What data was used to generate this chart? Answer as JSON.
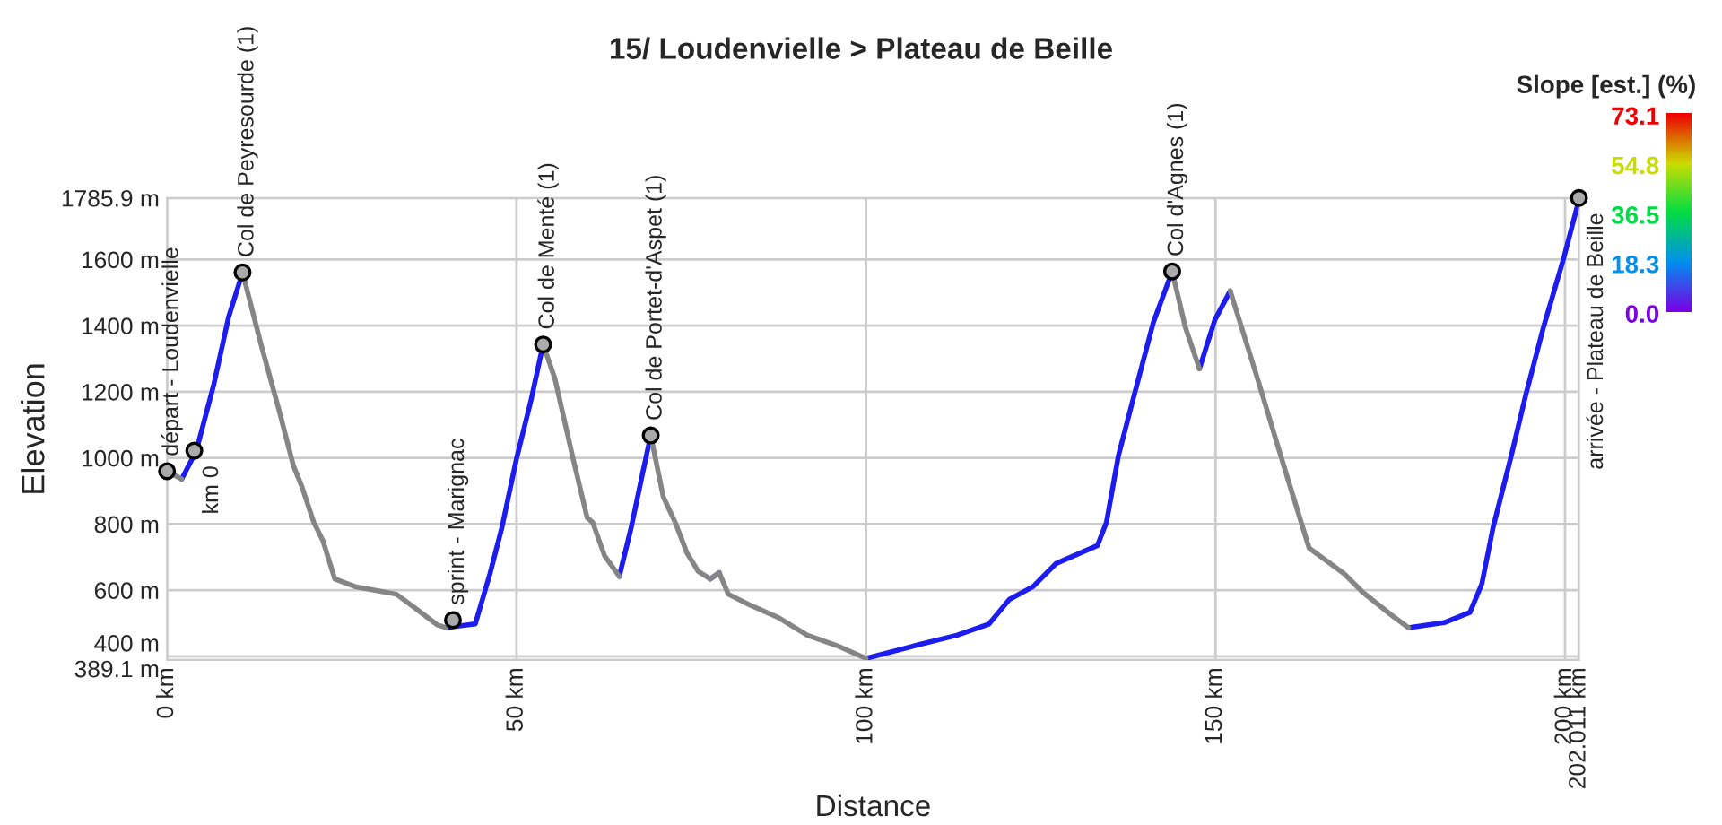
{
  "chart_data": {
    "type": "line",
    "title": "15/ Loudenvielle > Plateau de Beille",
    "xlabel": "Distance",
    "ylabel": "Elevation",
    "x": [
      0,
      2.1,
      4.2,
      6.7,
      8.8,
      10.8,
      13.4,
      16.0,
      18.1,
      19.3,
      21.0,
      22.3,
      24.0,
      26.9,
      30.3,
      32.8,
      35.3,
      38.7,
      39.9,
      44.1,
      46.2,
      47.9,
      50.0,
      52.1,
      53.8,
      55.5,
      58.0,
      60.1,
      60.9,
      62.6,
      64.7,
      66.4,
      68.1,
      69.2,
      71.0,
      72.7,
      74.4,
      76.0,
      77.7,
      79.0,
      80.3,
      83.2,
      87.4,
      91.6,
      95.8,
      100.0,
      107.1,
      113.0,
      117.6,
      120.5,
      123.9,
      127.2,
      133.1,
      134.4,
      136.1,
      138.2,
      141.1,
      143.8,
      145.7,
      147.7,
      149.9,
      152.1,
      155.8,
      160.0,
      163.4,
      168.4,
      171.0,
      175.1,
      177.6,
      182.7,
      186.4,
      188.1,
      189.7,
      192.3,
      194.4,
      196.9,
      199.8,
      202.0
    ],
    "series": [
      {
        "color": "#1c1cf0",
        "values": [
          null,
          936,
          1022,
          1223,
          1425,
          1561,
          null,
          null,
          null,
          null,
          null,
          null,
          null,
          null,
          null,
          null,
          null,
          null,
          487,
          498,
          650,
          789,
          998,
          1177,
          1343,
          null,
          null,
          null,
          null,
          null,
          642,
          789,
          960,
          1068,
          null,
          null,
          null,
          null,
          634,
          653,
          null,
          null,
          null,
          null,
          null,
          394,
          433,
          464,
          498,
          572,
          611,
          681,
          735,
          805,
          1006,
          1177,
          1409,
          1564,
          null,
          1270,
          1417,
          1505,
          null,
          null,
          null,
          null,
          null,
          null,
          487,
          502,
          533,
          619,
          789,
          1006,
          1192,
          1394,
          1603,
          1781
        ]
      },
      {
        "color": "#858585",
        "values": [
          960,
          936,
          null,
          null,
          null,
          1561,
          1347,
          1146,
          975,
          913,
          805,
          750,
          634,
          611,
          598,
          588,
          549,
          495,
          487,
          null,
          null,
          null,
          null,
          null,
          1343,
          1239,
          1006,
          820,
          805,
          704,
          642,
          null,
          null,
          1068,
          882,
          805,
          712,
          657,
          634,
          653,
          588,
          557,
          518,
          464,
          433,
          394,
          null,
          null,
          null,
          null,
          null,
          null,
          null,
          null,
          null,
          null,
          null,
          1564,
          1394,
          1270,
          null,
          1505,
          1254,
          960,
          727,
          650,
          595,
          526,
          487,
          null,
          null,
          null,
          null,
          null,
          null,
          null,
          null,
          null
        ]
      }
    ],
    "annotations": [
      {
        "text": "départ - Loudenvielle",
        "x": 0,
        "y": 960
      },
      {
        "text": "km 0",
        "x": 3.9,
        "y": 1022
      },
      {
        "text": "Col de Peyresourde (1)",
        "x": 10.8,
        "y": 1561
      },
      {
        "text": "sprint - Marignac",
        "x": 40.9,
        "y": 510
      },
      {
        "text": "Col de Menté (1)",
        "x": 53.8,
        "y": 1343
      },
      {
        "text": "Col de Portet-d'Aspet (1)",
        "x": 69.2,
        "y": 1068
      },
      {
        "text": "Col d'Agnes (1)",
        "x": 143.8,
        "y": 1564
      },
      {
        "text": "arrivée - Plateau de Beille",
        "x": 202.0,
        "y": 1785.9
      }
    ],
    "xlim": [
      0,
      202.011
    ],
    "xticks": [
      {
        "value": 0,
        "label": "0 km"
      },
      {
        "value": 50,
        "label": "50 km"
      },
      {
        "value": 100,
        "label": "100 km"
      },
      {
        "value": 150,
        "label": "150 km"
      },
      {
        "value": 200,
        "label": "200 km"
      },
      {
        "value": 202.011,
        "label": "202.011 km"
      }
    ],
    "ylim": [
      389.1,
      1785.9
    ],
    "yticks": [
      {
        "value": 389.1,
        "label": "389.1 m"
      },
      {
        "value": 400,
        "label": "400 m"
      },
      {
        "value": 600,
        "label": "600 m"
      },
      {
        "value": 800,
        "label": "800 m"
      },
      {
        "value": 1000,
        "label": "1000 m"
      },
      {
        "value": 1200,
        "label": "1200 m"
      },
      {
        "value": 1400,
        "label": "1400 m"
      },
      {
        "value": 1600,
        "label": "1600 m"
      },
      {
        "value": 1785.9,
        "label": "1785.9 m"
      }
    ],
    "clabel": "Slope [est.] (%)",
    "clim": [
      0,
      73.1
    ],
    "cticks": [
      73.1,
      54.8,
      36.5,
      18.3,
      {
        "value": 0,
        "label": "0.0"
      }
    ],
    "grid": true,
    "marker": "none",
    "line_style": "solid"
  }
}
